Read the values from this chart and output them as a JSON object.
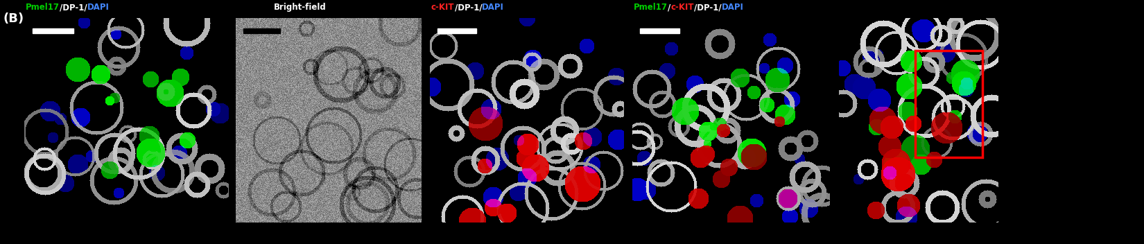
{
  "panel_label": "(B)",
  "titles": [
    {
      "text_parts": [
        {
          "text": "Pmel17",
          "color": "#00cc00"
        },
        {
          "text": "/DP-1/",
          "color": "#ffffff"
        },
        {
          "text": "DAPI",
          "color": "#4488ff"
        }
      ]
    },
    {
      "text_parts": [
        {
          "text": "Bright-field",
          "color": "#ffffff"
        }
      ]
    },
    {
      "text_parts": [
        {
          "text": "c-KIT",
          "color": "#ff2222"
        },
        {
          "text": "/DP-1/",
          "color": "#ffffff"
        },
        {
          "text": "DAPI",
          "color": "#4488ff"
        }
      ]
    },
    {
      "text_parts": [
        {
          "text": "Pmel17",
          "color": "#00cc00"
        },
        {
          "text": "/",
          "color": "#ffffff"
        },
        {
          "text": "c-KIT",
          "color": "#ff2222"
        },
        {
          "text": "/DP-1/",
          "color": "#ffffff"
        },
        {
          "text": "DAPI",
          "color": "#4488ff"
        }
      ]
    }
  ],
  "background_color": "#000000",
  "figure_bg": "#000000",
  "n_panels": 5,
  "red_border_last": true
}
